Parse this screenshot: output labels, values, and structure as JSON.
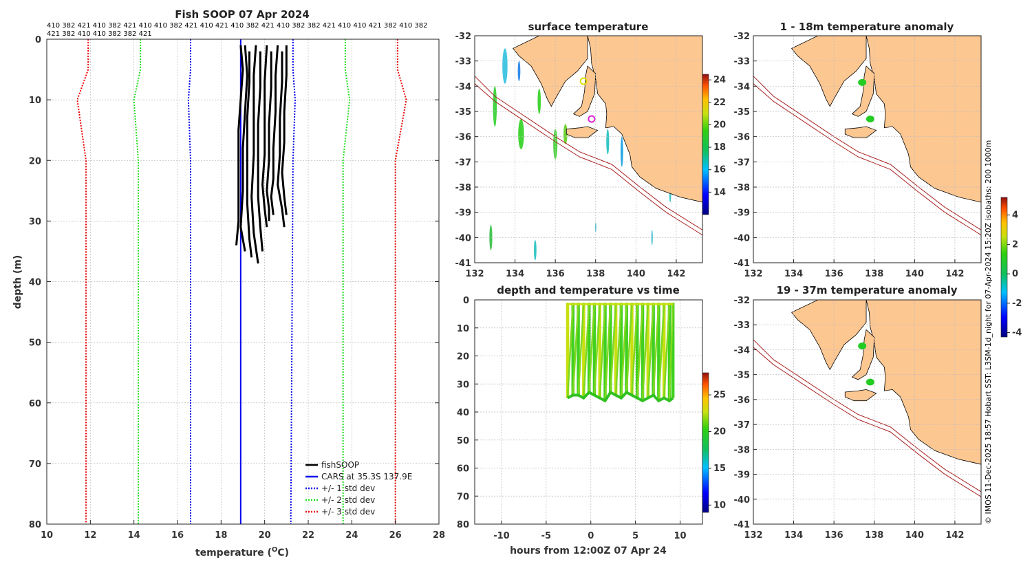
{
  "figure_title": "Fish SOOP 07 Apr 2024",
  "colors": {
    "land": "#fdc792",
    "profile": "#000000",
    "cars": "#0000ee",
    "std1": "#0000ee",
    "std2": "#22dd22",
    "std3": "#ee0000",
    "isobath": "#aa2222"
  },
  "serial_labels": {
    "line1": "410 382 421 410 382 421 410 410 382 421 410 421 410 382 421 410 382 382 421 410 410 421 382 410 382",
    "line2": "421 382 410 410 382 382 421"
  },
  "side_caption": "© IMOS 11-Dec-2025 18:57 Hobart SST: L3SM-1d_night for 07-Apr-2024 15:20Z isobaths: 200  1000m",
  "chart_data": [
    {
      "id": "profile",
      "type": "line",
      "title": "Fish SOOP 07 Apr 2024",
      "xlabel": "temperature (°C)",
      "ylabel": "depth (m)",
      "xlim": [
        10,
        28
      ],
      "ylim": [
        80,
        0
      ],
      "xticks": [
        "10",
        "12",
        "14",
        "16",
        "18",
        "20",
        "22",
        "24",
        "26",
        "28"
      ],
      "yticks": [
        "0",
        "10",
        "20",
        "30",
        "40",
        "50",
        "60",
        "70",
        "80"
      ],
      "grid": true,
      "legend": {
        "placement": "bottom-right",
        "entries": [
          "fishSOOP",
          "CARS at 35.3S 137.9E",
          "+/- 1 std dev",
          "+/- 2 std dev",
          "+/- 3 std dev"
        ]
      },
      "series": [
        {
          "name": "CARS at 35.3S 137.9E",
          "depth": [
            0,
            80
          ],
          "temp": [
            18.9,
            18.9
          ]
        },
        {
          "name": "-1 std dev",
          "depth": [
            0,
            5,
            10,
            20,
            80
          ],
          "temp": [
            16.6,
            16.6,
            16.5,
            16.6,
            16.6
          ]
        },
        {
          "name": "+1 std dev",
          "depth": [
            0,
            5,
            10,
            20,
            80
          ],
          "temp": [
            21.3,
            21.3,
            21.4,
            21.3,
            21.2
          ]
        },
        {
          "name": "-2 std dev",
          "depth": [
            0,
            5,
            10,
            20,
            80
          ],
          "temp": [
            14.3,
            14.3,
            14.0,
            14.2,
            14.2
          ]
        },
        {
          "name": "+2 std dev",
          "depth": [
            0,
            5,
            10,
            20,
            80
          ],
          "temp": [
            23.7,
            23.7,
            23.9,
            23.6,
            23.6
          ]
        },
        {
          "name": "-3 std dev",
          "depth": [
            0,
            5,
            10,
            20,
            80
          ],
          "temp": [
            11.9,
            11.9,
            11.4,
            11.8,
            11.8
          ]
        },
        {
          "name": "+3 std dev",
          "depth": [
            0,
            5,
            10,
            20,
            80
          ],
          "temp": [
            26.1,
            26.1,
            26.5,
            26.0,
            26.0
          ]
        },
        {
          "name": "fishSOOP",
          "profiles": [
            {
              "temp": [
                18.9,
                19.0,
                18.9,
                18.8,
                18.8,
                18.8,
                18.7
              ],
              "depth": [
                1,
                5,
                10,
                15,
                22,
                30,
                34
              ]
            },
            {
              "temp": [
                19.1,
                19.2,
                19.1,
                19.0,
                19.0,
                18.9,
                19.1
              ],
              "depth": [
                1,
                6,
                12,
                18,
                25,
                31,
                35
              ]
            },
            {
              "temp": [
                19.3,
                19.3,
                19.2,
                19.2,
                19.2,
                19.3,
                19.4
              ],
              "depth": [
                2,
                7,
                13,
                20,
                27,
                33,
                36
              ]
            },
            {
              "temp": [
                19.6,
                19.5,
                19.5,
                19.5,
                19.4,
                19.5,
                19.7
              ],
              "depth": [
                1,
                6,
                12,
                19,
                26,
                32,
                37
              ]
            },
            {
              "temp": [
                19.8,
                19.8,
                19.7,
                19.7,
                19.7,
                19.8,
                19.9
              ],
              "depth": [
                2,
                8,
                14,
                20,
                26,
                31,
                35
              ]
            },
            {
              "temp": [
                20.1,
                20.0,
                20.0,
                20.0,
                19.9,
                20.0,
                20.1
              ],
              "depth": [
                1,
                7,
                13,
                19,
                24,
                28,
                31
              ]
            },
            {
              "temp": [
                20.3,
                20.3,
                20.2,
                20.2,
                20.1,
                20.2,
                20.2
              ],
              "depth": [
                2,
                8,
                14,
                20,
                25,
                28,
                30
              ]
            },
            {
              "temp": [
                20.6,
                20.5,
                20.5,
                20.4,
                20.4,
                20.3,
                20.4
              ],
              "depth": [
                1,
                6,
                12,
                18,
                23,
                26,
                29
              ]
            },
            {
              "temp": [
                20.8,
                20.8,
                20.7,
                20.7,
                20.6,
                20.8,
                20.9
              ],
              "depth": [
                2,
                7,
                13,
                19,
                24,
                28,
                31
              ]
            },
            {
              "temp": [
                21.0,
                21.0,
                20.9,
                20.9,
                20.8,
                20.9,
                21.0
              ],
              "depth": [
                1,
                6,
                12,
                17,
                22,
                26,
                29
              ]
            }
          ]
        }
      ]
    },
    {
      "id": "surface",
      "type": "heatmap",
      "title": "surface temperature",
      "xlim": [
        132,
        143.3
      ],
      "ylim": [
        -41,
        -32
      ],
      "xticks": [
        "132",
        "134",
        "136",
        "138",
        "140",
        "142"
      ],
      "yticks": [
        "-32",
        "-33",
        "-34",
        "-35",
        "-36",
        "-37",
        "-38",
        "-39",
        "-40",
        "-41"
      ],
      "colorbar": {
        "min": 12,
        "max": 24.5,
        "ticks": [
          "14",
          "16",
          "18",
          "20",
          "22",
          "24"
        ]
      },
      "markers": [
        {
          "lon": 137.4,
          "lat": -33.8,
          "color": "#dddd00"
        },
        {
          "lon": 137.8,
          "lat": -35.3,
          "color": "#dd22dd"
        }
      ]
    },
    {
      "id": "anomaly1",
      "type": "heatmap",
      "title": "1 - 18m temperature anomaly",
      "xlim": [
        132,
        143.3
      ],
      "ylim": [
        -41,
        -32
      ],
      "xticks": [
        "132",
        "134",
        "136",
        "138",
        "140",
        "142"
      ],
      "yticks": [
        "-32",
        "-33",
        "-34",
        "-35",
        "-36",
        "-37",
        "-38",
        "-39",
        "-40",
        "-41"
      ],
      "markers": [
        {
          "lon": 137.4,
          "lat": -33.85,
          "color": "#22cc22"
        },
        {
          "lon": 137.8,
          "lat": -35.3,
          "color": "#22cc22"
        }
      ]
    },
    {
      "id": "anomaly2",
      "type": "heatmap",
      "title": "19 - 37m temperature anomaly",
      "xlim": [
        132,
        143.3
      ],
      "ylim": [
        -41,
        -32
      ],
      "xticks": [
        "132",
        "134",
        "136",
        "138",
        "140",
        "142"
      ],
      "yticks": [
        "-32",
        "-33",
        "-34",
        "-35",
        "-36",
        "-37",
        "-38",
        "-39",
        "-40",
        "-41"
      ],
      "markers": [
        {
          "lon": 137.4,
          "lat": -33.85,
          "color": "#22cc22"
        },
        {
          "lon": 137.8,
          "lat": -35.3,
          "color": "#22cc22"
        }
      ]
    },
    {
      "id": "anomaly_colorbar",
      "type": "colorbar",
      "min": -4.3,
      "max": 5.2,
      "ticks": [
        "-4",
        "-2",
        "0",
        "2",
        "4"
      ]
    },
    {
      "id": "timeseries",
      "type": "scatter",
      "title": "depth and temperature vs time",
      "xlabel": "hours from 12:00Z 07 Apr 24",
      "xlim": [
        -13,
        12.5
      ],
      "ylim": [
        80,
        0
      ],
      "xticks": [
        "-10",
        "-5",
        "0",
        "5",
        "10"
      ],
      "yticks": [
        "0",
        "10",
        "20",
        "30",
        "40",
        "50",
        "60",
        "70",
        "80"
      ],
      "colorbar": {
        "min": 9,
        "max": 28,
        "ticks": [
          "10",
          "15",
          "20",
          "25"
        ]
      },
      "casts": [
        {
          "t": -2.6,
          "maxdepth": 35
        },
        {
          "t": -2.0,
          "maxdepth": 34
        },
        {
          "t": -1.4,
          "maxdepth": 34
        },
        {
          "t": -0.8,
          "maxdepth": 35
        },
        {
          "t": -0.2,
          "maxdepth": 33
        },
        {
          "t": 0.4,
          "maxdepth": 34
        },
        {
          "t": 1.0,
          "maxdepth": 35
        },
        {
          "t": 1.6,
          "maxdepth": 36
        },
        {
          "t": 2.2,
          "maxdepth": 33
        },
        {
          "t": 2.8,
          "maxdepth": 34
        },
        {
          "t": 3.4,
          "maxdepth": 35
        },
        {
          "t": 4.0,
          "maxdepth": 33
        },
        {
          "t": 4.6,
          "maxdepth": 34
        },
        {
          "t": 5.2,
          "maxdepth": 35
        },
        {
          "t": 5.8,
          "maxdepth": 36
        },
        {
          "t": 6.4,
          "maxdepth": 35
        },
        {
          "t": 7.0,
          "maxdepth": 34
        },
        {
          "t": 7.6,
          "maxdepth": 36
        },
        {
          "t": 8.2,
          "maxdepth": 35
        },
        {
          "t": 8.8,
          "maxdepth": 36
        },
        {
          "t": 9.2,
          "maxdepth": 35
        }
      ]
    }
  ]
}
